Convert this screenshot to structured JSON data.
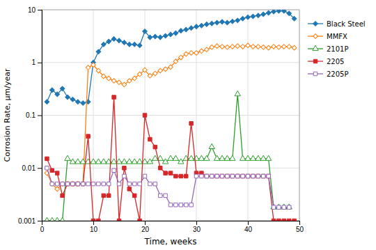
{
  "chart_data": {
    "type": "line",
    "xlabel": "Time, weeks",
    "ylabel": "Corrosion Rate, μm/year",
    "log": "y",
    "grid": true,
    "legend": "right",
    "xlim": [
      0,
      50
    ],
    "xticks": [
      0,
      10,
      20,
      30,
      40,
      50
    ],
    "ylim": [
      0.001,
      10
    ],
    "yticks": [
      0.001,
      0.01,
      0.1,
      1,
      10
    ],
    "series": [
      {
        "name": "Black Steel",
        "marker": "diamond-filled",
        "x": [
          1,
          2,
          3,
          4,
          5,
          6,
          7,
          8,
          9,
          10,
          11,
          12,
          13,
          14,
          15,
          16,
          17,
          18,
          19,
          20,
          21,
          22,
          23,
          24,
          25,
          26,
          27,
          28,
          29,
          30,
          31,
          32,
          33,
          34,
          35,
          36,
          37,
          38,
          39,
          40,
          41,
          42,
          43,
          44,
          45,
          46,
          47,
          48,
          49
        ],
        "values": [
          0.18,
          0.3,
          0.25,
          0.32,
          0.22,
          0.2,
          0.18,
          0.17,
          0.18,
          1.0,
          1.6,
          2.2,
          2.5,
          2.8,
          2.6,
          2.4,
          2.2,
          2.2,
          2.1,
          3.9,
          3.0,
          3.1,
          3.0,
          3.2,
          3.4,
          3.6,
          4.0,
          4.2,
          4.5,
          4.8,
          5.0,
          5.3,
          5.5,
          5.7,
          5.9,
          5.7,
          6.0,
          6.3,
          6.8,
          7.2,
          7.5,
          7.8,
          8.2,
          8.7,
          9.2,
          9.5,
          9.5,
          8.5,
          6.8
        ]
      },
      {
        "name": "MMFX",
        "marker": "diamond-open",
        "x": [
          1,
          2,
          3,
          4,
          5,
          6,
          7,
          8,
          9,
          10,
          11,
          12,
          13,
          14,
          15,
          16,
          17,
          18,
          19,
          20,
          21,
          22,
          23,
          24,
          25,
          26,
          27,
          28,
          29,
          30,
          31,
          32,
          33,
          34,
          35,
          36,
          37,
          38,
          39,
          40,
          41,
          42,
          43,
          44,
          45,
          46,
          47,
          48,
          49
        ],
        "values": [
          0.008,
          0.005,
          0.004,
          0.005,
          0.005,
          0.005,
          0.005,
          0.005,
          0.8,
          0.9,
          0.7,
          0.55,
          0.5,
          0.45,
          0.42,
          0.38,
          0.45,
          0.5,
          0.6,
          0.72,
          0.56,
          0.62,
          0.7,
          0.75,
          0.82,
          1.05,
          1.25,
          1.45,
          1.52,
          1.52,
          1.65,
          1.75,
          1.95,
          2.05,
          2.0,
          1.95,
          2.0,
          2.05,
          2.0,
          2.1,
          2.0,
          2.0,
          1.95,
          1.9,
          2.0,
          1.95,
          2.0,
          2.0,
          1.9
        ]
      },
      {
        "name": "2101P",
        "marker": "triangle-open",
        "x": [
          1,
          2,
          3,
          4,
          5,
          6,
          7,
          8,
          9,
          10,
          11,
          12,
          13,
          14,
          15,
          16,
          17,
          18,
          19,
          20,
          21,
          22,
          23,
          24,
          25,
          26,
          27,
          28,
          29,
          30,
          31,
          32,
          33,
          34,
          35,
          36,
          37,
          38,
          39,
          40,
          41,
          42,
          43,
          44,
          45,
          46,
          47,
          48
        ],
        "values": [
          0.001,
          0.001,
          0.001,
          0.001,
          0.015,
          0.013,
          0.013,
          0.013,
          0.013,
          0.013,
          0.013,
          0.013,
          0.013,
          0.013,
          0.013,
          0.013,
          0.013,
          0.013,
          0.013,
          0.013,
          0.013,
          0.015,
          0.015,
          0.013,
          0.015,
          0.015,
          0.013,
          0.015,
          0.015,
          0.015,
          0.015,
          0.015,
          0.025,
          0.015,
          0.015,
          0.015,
          0.015,
          0.25,
          0.015,
          0.015,
          0.015,
          0.015,
          0.015,
          0.015,
          0.0018,
          0.0018,
          0.0018,
          0.0018
        ]
      },
      {
        "name": "2205",
        "marker": "square-filled",
        "x": [
          1,
          2,
          3,
          4,
          5,
          6,
          7,
          8,
          9,
          10,
          11,
          12,
          13,
          14,
          15,
          16,
          17,
          18,
          19,
          20,
          21,
          22,
          23,
          24,
          25,
          26,
          27,
          28,
          29,
          30,
          31,
          32,
          33,
          34,
          35,
          36,
          37,
          38,
          39,
          40,
          41,
          42,
          43,
          44,
          45,
          46,
          47,
          48,
          49
        ],
        "values": [
          0.015,
          0.009,
          0.008,
          0.003,
          0.005,
          0.005,
          0.005,
          0.005,
          0.04,
          0.001,
          0.001,
          0.003,
          0.003,
          0.22,
          0.001,
          0.01,
          0.004,
          0.003,
          0.001,
          0.1,
          0.035,
          0.025,
          0.01,
          0.008,
          0.008,
          0.007,
          0.007,
          0.007,
          0.07,
          0.008,
          0.008,
          0.007,
          0.007,
          0.007,
          0.007,
          0.007,
          0.007,
          0.007,
          0.007,
          0.007,
          0.007,
          0.007,
          0.007,
          0.007,
          0.001,
          0.001,
          0.001,
          0.001,
          0.001
        ]
      },
      {
        "name": "2205P",
        "marker": "square-open",
        "x": [
          1,
          2,
          3,
          4,
          5,
          6,
          7,
          8,
          9,
          10,
          11,
          12,
          13,
          14,
          15,
          16,
          17,
          18,
          19,
          20,
          21,
          22,
          23,
          24,
          25,
          26,
          27,
          28,
          29,
          30,
          31,
          32,
          33,
          34,
          35,
          36,
          37,
          38,
          39,
          40,
          41,
          42,
          43,
          44,
          45,
          46,
          47,
          48
        ],
        "values": [
          0.01,
          0.005,
          0.005,
          0.005,
          0.005,
          0.005,
          0.005,
          0.005,
          0.005,
          0.005,
          0.005,
          0.005,
          0.005,
          0.009,
          0.005,
          0.007,
          0.005,
          0.005,
          0.005,
          0.007,
          0.005,
          0.005,
          0.003,
          0.003,
          0.002,
          0.002,
          0.002,
          0.002,
          0.002,
          0.007,
          0.007,
          0.007,
          0.007,
          0.007,
          0.007,
          0.007,
          0.007,
          0.007,
          0.007,
          0.007,
          0.007,
          0.007,
          0.007,
          0.007,
          0.0018,
          0.0018,
          0.0018,
          0.0018
        ]
      }
    ]
  }
}
